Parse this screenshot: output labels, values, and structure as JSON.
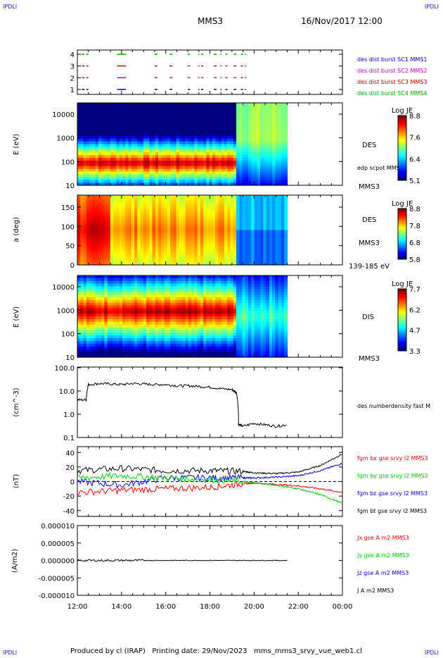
{
  "corners": {
    "tl": "IPDLI",
    "tr": "IPDLI",
    "bl": "IPDLI",
    "br": "IPDLI"
  },
  "header": {
    "spacecraft": "MMS3",
    "datetime": "16/Nov/2017 12:00"
  },
  "footer": {
    "text": "Produced by cl (IRAP)   Printing date: 29/Nov/2023   mms_mms3_srvy_vue_web1.cl"
  },
  "time_axis": {
    "range_hours": [
      12,
      24
    ],
    "labels": [
      "12:00",
      "14:00",
      "16:00",
      "18:00",
      "20:00",
      "22:00",
      "00:00"
    ],
    "data_end_hour": 21.5
  },
  "panels": {
    "burst": {
      "type": "timeline",
      "yticks": [
        "4",
        "3",
        "2",
        "1"
      ],
      "legend": [
        {
          "text": "des dist burst SC1 MMS1",
          "color": "#0000cc"
        },
        {
          "text": "des dist burst SC2 MMS2",
          "color": "#cc00cc"
        },
        {
          "text": "des dist burst SC3 MMS3",
          "color": "#cc0000"
        },
        {
          "text": "des dist burst SC4 MMS4",
          "color": "#00aa00"
        }
      ],
      "intervals_hours": [
        [
          12.2,
          12.3
        ],
        [
          12.4,
          12.5
        ],
        [
          13.8,
          14.2
        ],
        [
          15.5,
          15.6
        ],
        [
          16.2,
          16.3
        ],
        [
          17.0,
          17.1
        ],
        [
          17.6,
          17.7
        ],
        [
          18.2,
          18.3
        ],
        [
          18.7,
          18.8
        ],
        [
          19.1,
          19.2
        ],
        [
          19.4,
          19.5
        ]
      ],
      "pink_dots_hours": [
        12.3,
        14.0,
        15.6,
        16.2,
        17.5,
        18.2,
        18.5,
        19.1,
        19.6
      ]
    },
    "des_spec": {
      "type": "heatmap",
      "ylabel": "E (eV)",
      "yticks": [
        "10000",
        "1000",
        "100",
        "10"
      ],
      "instrument": "DES",
      "overlay": "edp scpot MMS3",
      "sc": "MMS3",
      "colorbar": {
        "title": "Log JE",
        "ticks": [
          "8.8",
          "7.6",
          "6.4",
          "5.1"
        ]
      }
    },
    "pitch": {
      "type": "heatmap",
      "ylabel": "a (deg)",
      "yticks": [
        "150",
        "100",
        "50",
        "0"
      ],
      "instrument": "DES",
      "sc": "MMS3",
      "energy": "139-185 eV",
      "colorbar": {
        "title": "Log JE",
        "ticks": [
          "8.8",
          "7.8",
          "6.8",
          "5.8"
        ]
      }
    },
    "dis_spec": {
      "type": "heatmap",
      "ylabel": "E (eV)",
      "yticks": [
        "10000",
        "1000",
        "100",
        "10"
      ],
      "instrument": "DIS",
      "sc": "MMS3",
      "colorbar": {
        "title": "Log JE",
        "ticks": [
          "7.7",
          "6.2",
          "4.7",
          "3.3"
        ]
      }
    },
    "density": {
      "type": "line",
      "ylabel": "(cm^-3)",
      "yticks": [
        "100.0",
        "10.0",
        "1.0",
        "0.1"
      ],
      "ylim_log": [
        0.1,
        100
      ],
      "legend": "des numberdensity fast M",
      "series": [
        {
          "color": "#000000",
          "x": [
            12.0,
            12.4,
            12.5,
            13.0,
            13.5,
            14.0,
            14.5,
            15.0,
            15.5,
            16.0,
            16.5,
            17.0,
            17.5,
            18.0,
            18.5,
            19.0,
            19.2,
            19.3,
            19.5,
            20.0,
            20.5,
            21.0,
            21.5
          ],
          "y": [
            4.0,
            4.0,
            18,
            20,
            19,
            18,
            20,
            19,
            18,
            18,
            16,
            16,
            15,
            14,
            12,
            11,
            8,
            0.35,
            0.3,
            0.4,
            0.35,
            0.3,
            0.35
          ]
        }
      ]
    },
    "fgm": {
      "type": "line",
      "ylabel": "(nT)",
      "yticks": [
        "40",
        "20",
        "0",
        "-20",
        "-40"
      ],
      "ylim": [
        -48,
        48
      ],
      "legend": [
        {
          "text": "fgm bx gse srvy l2 MMS3",
          "color": "#ff0000"
        },
        {
          "text": "fgm by gse srvy l2 MMS3",
          "color": "#00cc00"
        },
        {
          "text": "fgm bz gse srvy l2 MMS3",
          "color": "#0000ff"
        },
        {
          "text": "fgm bt gse srvy l2 MMS3",
          "color": "#000000"
        }
      ],
      "series": [
        {
          "name": "bt",
          "color": "#000000",
          "x": [
            12,
            14,
            16,
            18,
            19.5,
            20,
            21,
            22,
            23,
            24
          ],
          "y": [
            15,
            18,
            15,
            15,
            14,
            12,
            11,
            13,
            22,
            38
          ]
        },
        {
          "name": "bz",
          "color": "#0000ff",
          "x": [
            12,
            14,
            16,
            18,
            19.5,
            20,
            21,
            22,
            23,
            24
          ],
          "y": [
            0,
            -5,
            5,
            5,
            5,
            5,
            6,
            8,
            15,
            25
          ]
        },
        {
          "name": "bx",
          "color": "#ff0000",
          "x": [
            12,
            14,
            16,
            18,
            19.5,
            20,
            21,
            22,
            23,
            24
          ],
          "y": [
            -15,
            -12,
            -10,
            -8,
            -3,
            -2,
            -4,
            -6,
            -10,
            -15
          ]
        },
        {
          "name": "by",
          "color": "#00cc00",
          "x": [
            12,
            14,
            16,
            18,
            19.5,
            20,
            21,
            22,
            23,
            24
          ],
          "y": [
            5,
            8,
            5,
            3,
            0,
            -2,
            -5,
            -10,
            -18,
            -30
          ]
        }
      ]
    },
    "current": {
      "type": "line",
      "ylabel": "(A/m2)",
      "yticks": [
        "0.000010",
        "0.000005",
        "0.000000",
        "-0.000005",
        "-0.000010"
      ],
      "ylim": [
        -1e-05,
        1e-05
      ],
      "legend": [
        {
          "text": "Jx gse A m2 MMS3",
          "color": "#ff0000"
        },
        {
          "text": "Jy gse A m2 MMS3",
          "color": "#00cc00"
        },
        {
          "text": "Jz gse A m2 MMS3",
          "color": "#0000ff"
        },
        {
          "text": "J A m2 MMS3",
          "color": "#000000"
        }
      ],
      "series": [
        {
          "name": "J",
          "color": "#000000",
          "x": [
            12,
            24
          ],
          "y": [
            0,
            0
          ]
        }
      ]
    }
  },
  "chart_data": [
    {
      "type": "heatmap",
      "title": "",
      "ylabel": "E (eV)",
      "colorbar_title": "Log JE",
      "colorbar_range": [
        5.1,
        8.8
      ]
    },
    {
      "type": "heatmap",
      "title": "",
      "ylabel": "a (deg)",
      "colorbar_title": "Log JE",
      "colorbar_range": [
        5.8,
        8.8
      ]
    },
    {
      "type": "heatmap",
      "title": "",
      "ylabel": "E (eV)",
      "colorbar_title": "Log JE",
      "colorbar_range": [
        3.3,
        7.7
      ]
    },
    {
      "type": "line",
      "ylabel": "(cm^-3)",
      "xlabel": "",
      "series": [
        {
          "name": "des numberdensity fast M",
          "x": [
            12,
            13,
            14,
            15,
            16,
            17,
            18,
            19,
            19.3,
            20,
            21
          ],
          "y": [
            4,
            20,
            18,
            19,
            18,
            16,
            14,
            11,
            0.35,
            0.4,
            0.3
          ]
        }
      ]
    },
    {
      "type": "line",
      "ylabel": "(nT)",
      "series": [
        {
          "name": "fgm bx gse srvy l2 MMS3",
          "x": [
            12,
            16,
            20,
            24
          ],
          "y": [
            -15,
            -10,
            -2,
            -15
          ]
        },
        {
          "name": "fgm by gse srvy l2 MMS3",
          "x": [
            12,
            16,
            20,
            24
          ],
          "y": [
            5,
            5,
            -2,
            -30
          ]
        },
        {
          "name": "fgm bz gse srvy l2 MMS3",
          "x": [
            12,
            16,
            20,
            24
          ],
          "y": [
            0,
            5,
            5,
            25
          ]
        },
        {
          "name": "fgm bt gse srvy l2 MMS3",
          "x": [
            12,
            16,
            20,
            24
          ],
          "y": [
            15,
            15,
            12,
            38
          ]
        }
      ]
    },
    {
      "type": "line",
      "ylabel": "(A/m2)",
      "series": [
        {
          "name": "J A m2 MMS3",
          "x": [
            12,
            24
          ],
          "y": [
            0,
            0
          ]
        }
      ]
    }
  ]
}
